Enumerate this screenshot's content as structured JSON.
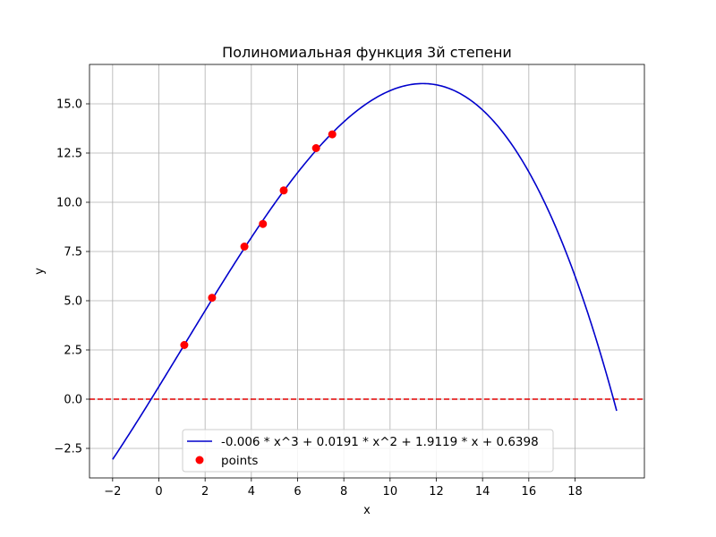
{
  "chart_data": {
    "type": "line",
    "title": "Полиномиальная функция 3й степени",
    "xlabel": "x",
    "ylabel": "y",
    "xlim": [
      -3.0,
      21.0
    ],
    "ylim": [
      -4.0,
      17.0
    ],
    "xticks": [
      -2,
      0,
      2,
      4,
      6,
      8,
      10,
      12,
      14,
      16,
      18
    ],
    "xtick_labels": [
      "−2",
      "0",
      "2",
      "4",
      "6",
      "8",
      "10",
      "12",
      "14",
      "16",
      "18"
    ],
    "yticks": [
      -2.5,
      0.0,
      2.5,
      5.0,
      7.5,
      10.0,
      12.5,
      15.0
    ],
    "ytick_labels": [
      "−2.5",
      "0.0",
      "2.5",
      "5.0",
      "7.5",
      "10.0",
      "12.5",
      "15.0"
    ],
    "grid": true,
    "legend_position": "lower-center",
    "series": [
      {
        "name": "-0.006 * x^3 + 0.0191 * x^2 + 1.9119 * x + 0.6398",
        "kind": "line",
        "color": "#0000cc",
        "coefficients": [
          -0.006,
          0.0191,
          1.9119,
          0.6398
        ],
        "x_range": [
          -2.0,
          19.8
        ]
      },
      {
        "name": "points",
        "kind": "scatter",
        "color": "#ff0000",
        "x": [
          1.1,
          2.3,
          3.7,
          4.5,
          5.4,
          6.8,
          7.5
        ],
        "y": [
          2.75,
          5.15,
          7.75,
          8.9,
          10.6,
          12.75,
          13.45
        ]
      }
    ],
    "reference_lines": [
      {
        "orientation": "horizontal",
        "y": 0.0,
        "color": "#e00000",
        "style": "dashed"
      }
    ]
  }
}
